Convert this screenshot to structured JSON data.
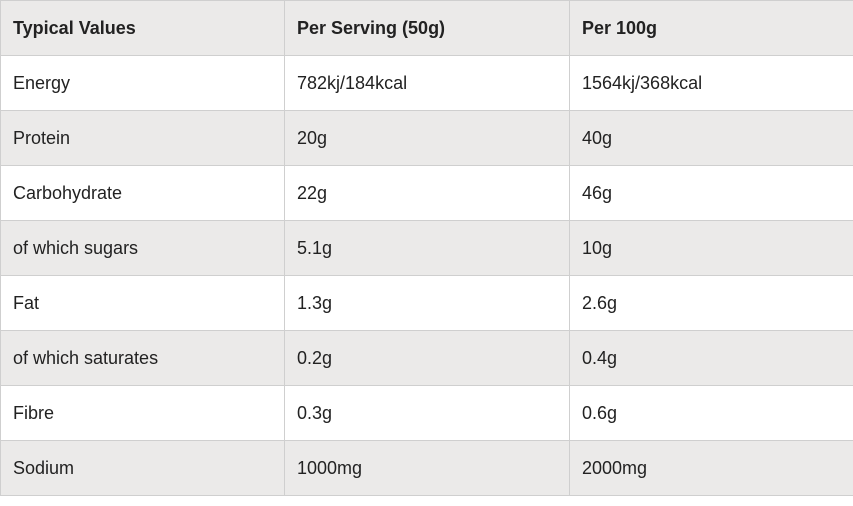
{
  "table": {
    "header": [
      "Typical Values",
      "Per Serving (50g)",
      "Per 100g"
    ],
    "rows": [
      [
        "Energy",
        "782kj/184kcal",
        "1564kj/368kcal"
      ],
      [
        "Protein",
        "20g",
        "40g"
      ],
      [
        "Carbohydrate",
        "22g",
        "46g"
      ],
      [
        "of which sugars",
        "5.1g",
        "10g"
      ],
      [
        "Fat",
        "1.3g",
        "2.6g"
      ],
      [
        "of which saturates",
        "0.2g",
        "0.4g"
      ],
      [
        "Fibre",
        "0.3g",
        "0.6g"
      ],
      [
        "Sodium",
        "1000mg",
        "2000mg"
      ]
    ]
  }
}
